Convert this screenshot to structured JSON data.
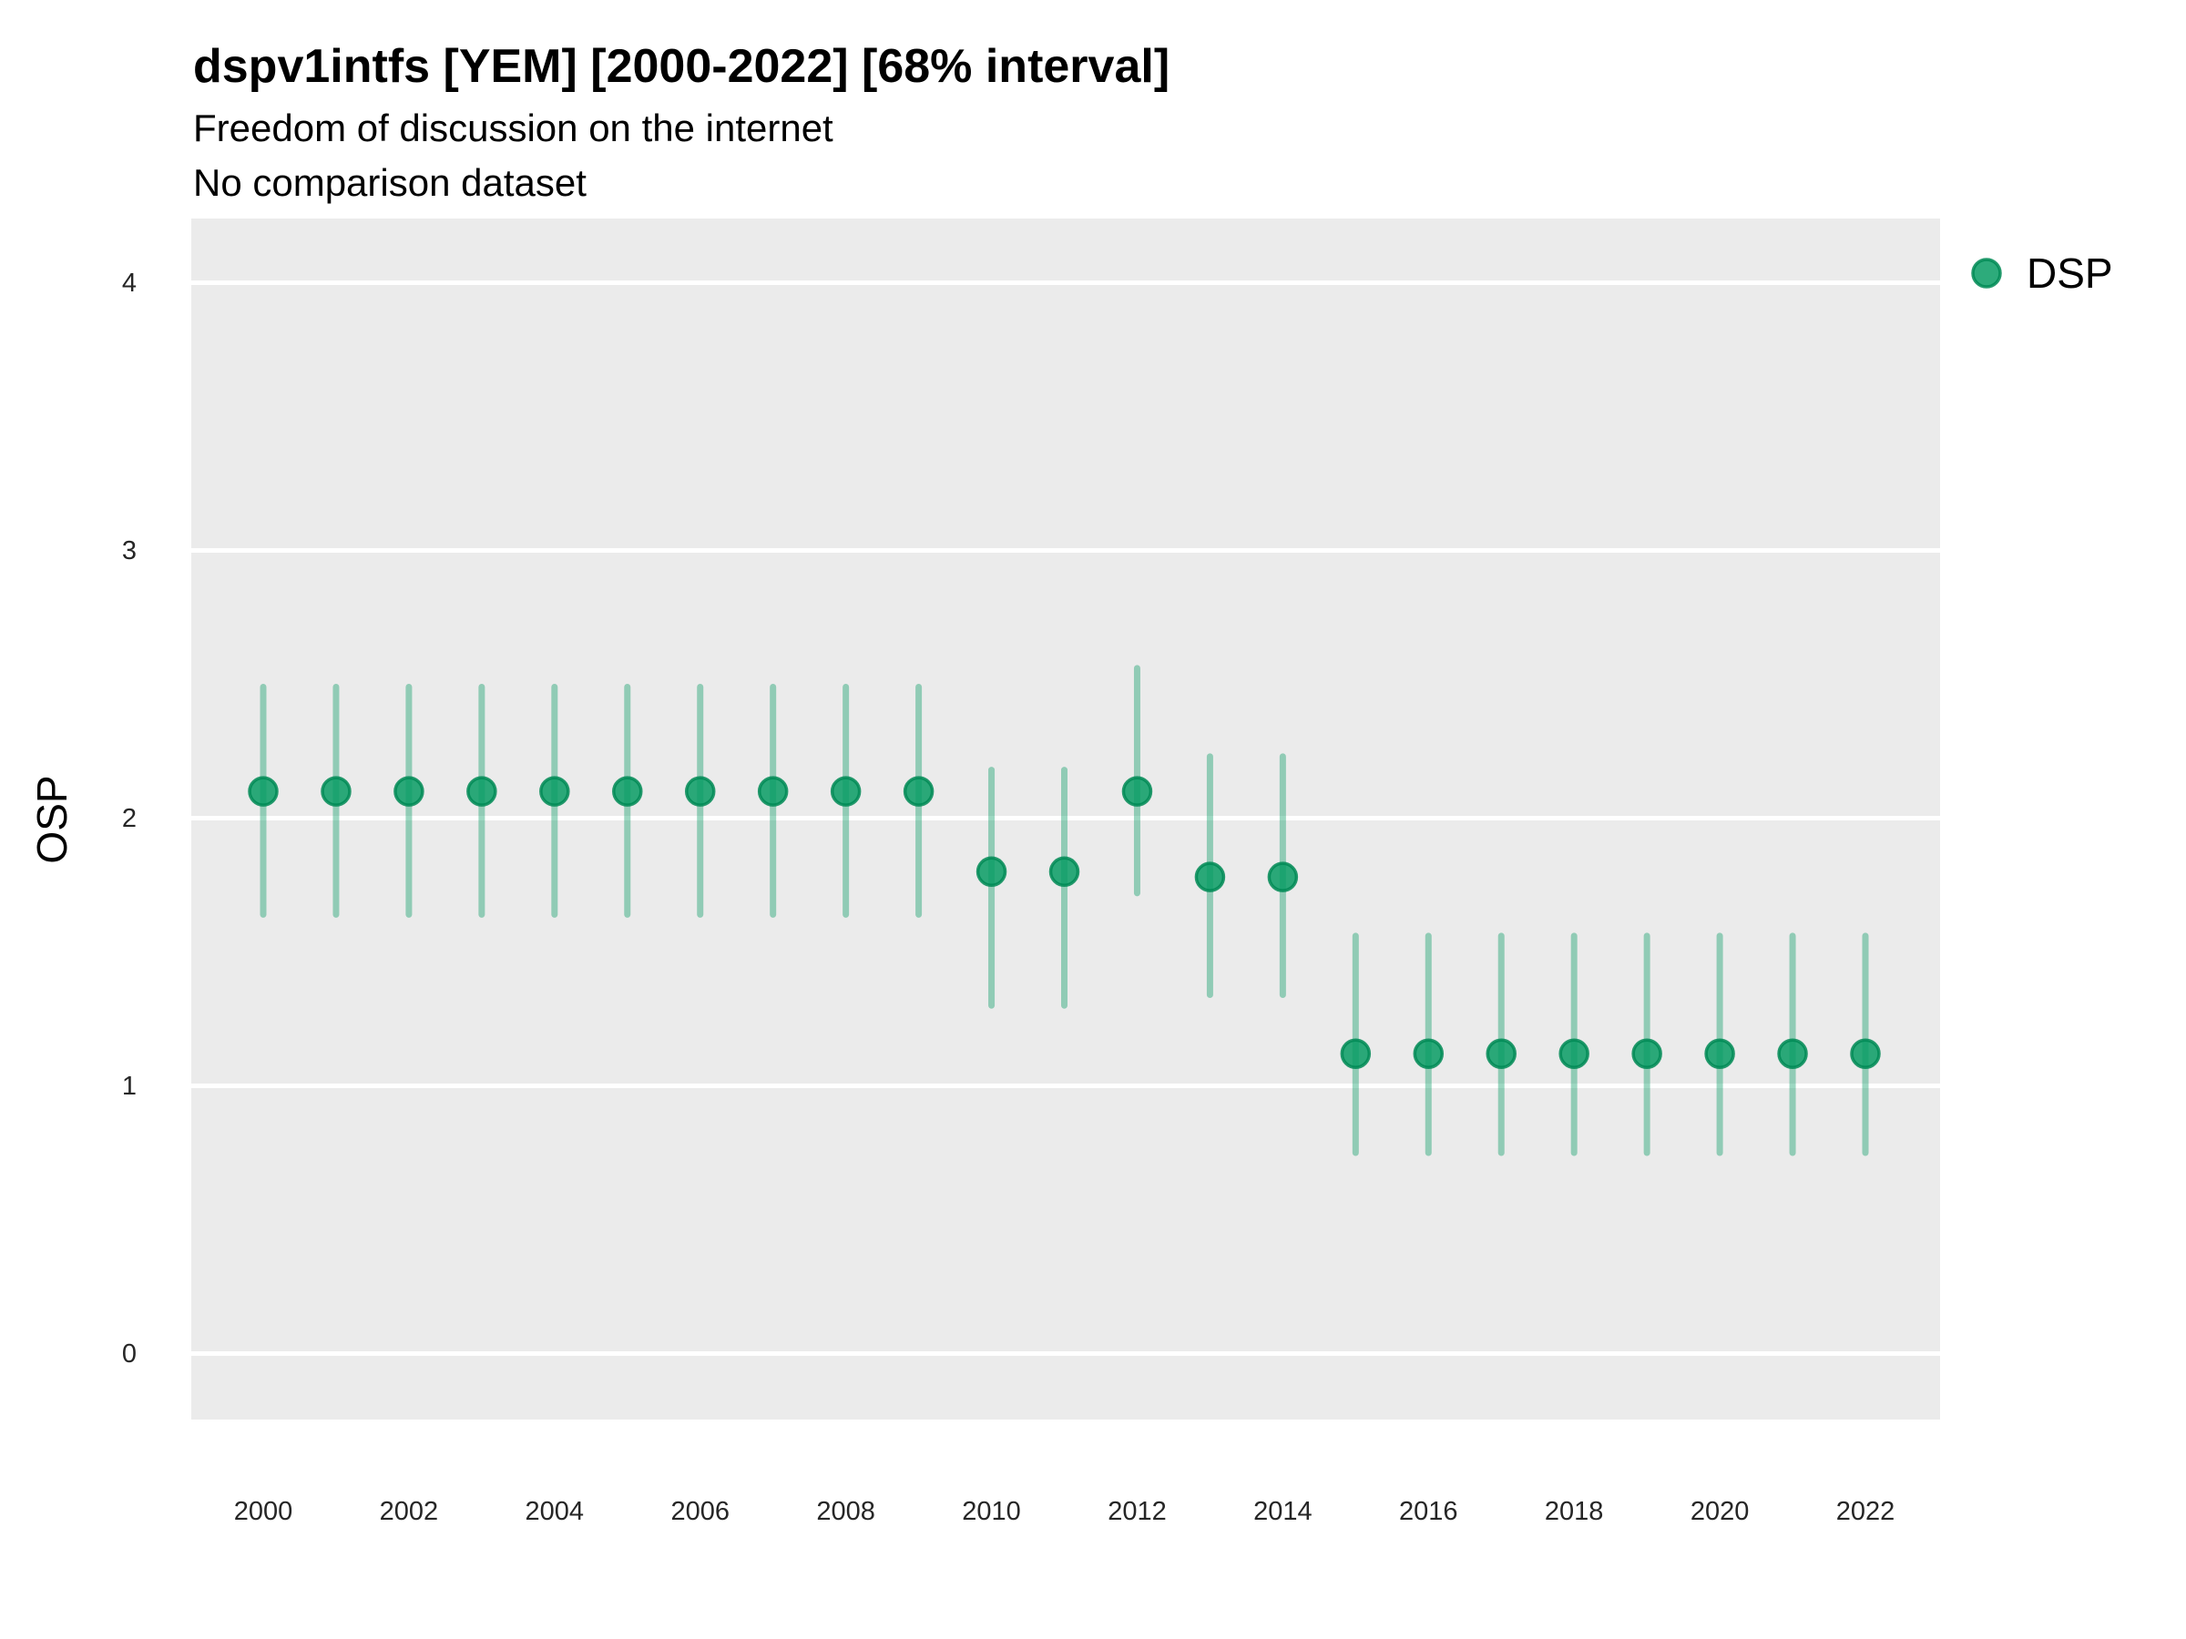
{
  "title": "dspv1intfs [YEM] [2000-2022] [68% interval]",
  "subtitle_line1": "Freedom of discussion on the internet",
  "subtitle_line2": "No comparison dataset",
  "y_axis_title": "OSP",
  "legend": {
    "position": "right-top",
    "items": [
      {
        "label": "DSP",
        "marker": "circle-icon"
      }
    ]
  },
  "colors": {
    "page_bg": "#ffffff",
    "panel_bg": "#ebebeb",
    "gridline": "#ffffff",
    "point_fill": "rgba(8,156,100,0.85)",
    "point_stroke": "rgba(0,138,85,0.85)",
    "interval_line": "rgba(8,156,100,0.40)",
    "title_text": "#000000",
    "tick_text": "#262626"
  },
  "chart_data": {
    "type": "scatter",
    "subtype": "pointrange",
    "title": "dspv1intfs [YEM] [2000-2022] [68% interval]",
    "subtitle": "Freedom of discussion on the internet",
    "note": "No comparison dataset",
    "interval_level": "68%",
    "xlabel": "",
    "ylabel": "OSP",
    "grid": "major-y-only, white gridlines on grey panel",
    "legend_position": "right-top",
    "xlim": [
      1999,
      2023
    ],
    "ylim": [
      -0.25,
      4.25
    ],
    "xticks": [
      2000,
      2002,
      2004,
      2006,
      2008,
      2010,
      2012,
      2014,
      2016,
      2018,
      2020,
      2022
    ],
    "yticks": [
      0,
      1,
      2,
      3,
      4
    ],
    "x": [
      2000,
      2001,
      2002,
      2003,
      2004,
      2005,
      2006,
      2007,
      2008,
      2009,
      2010,
      2011,
      2012,
      2013,
      2014,
      2015,
      2016,
      2017,
      2018,
      2019,
      2020,
      2021,
      2022
    ],
    "series": [
      {
        "name": "DSP",
        "values": [
          2.1,
          2.1,
          2.1,
          2.1,
          2.1,
          2.1,
          2.1,
          2.1,
          2.1,
          2.1,
          1.8,
          1.8,
          2.1,
          1.78,
          1.78,
          1.12,
          1.12,
          1.12,
          1.12,
          1.12,
          1.12,
          1.12,
          1.12
        ],
        "lower": [
          1.64,
          1.64,
          1.64,
          1.64,
          1.64,
          1.64,
          1.64,
          1.64,
          1.64,
          1.64,
          1.3,
          1.3,
          1.72,
          1.34,
          1.34,
          0.75,
          0.75,
          0.75,
          0.75,
          0.75,
          0.75,
          0.75,
          0.75
        ],
        "upper": [
          2.49,
          2.49,
          2.49,
          2.49,
          2.49,
          2.49,
          2.49,
          2.49,
          2.49,
          2.49,
          2.18,
          2.18,
          2.56,
          2.23,
          2.23,
          1.56,
          1.56,
          1.56,
          1.56,
          1.56,
          1.56,
          1.56,
          1.56
        ]
      }
    ]
  }
}
